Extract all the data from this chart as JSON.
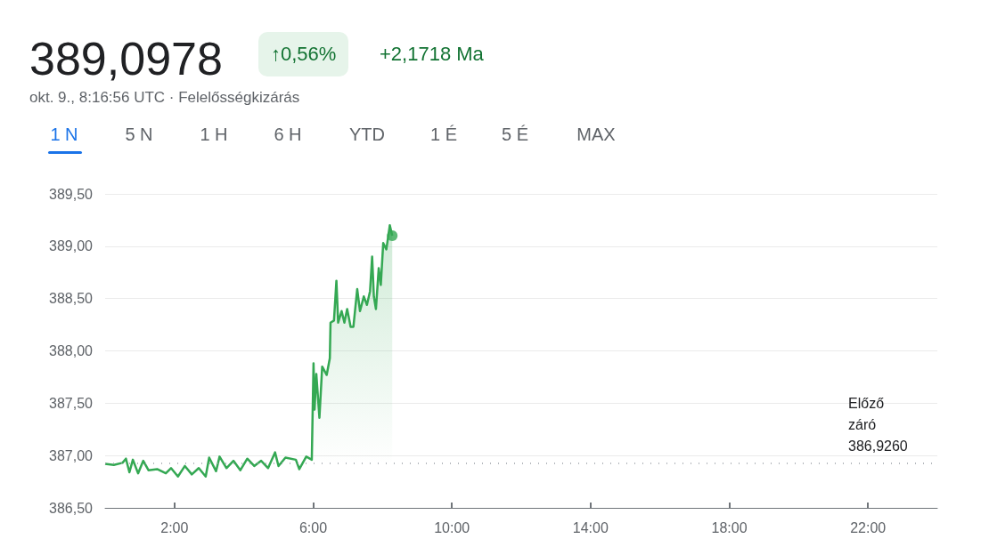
{
  "chart_data": {
    "type": "area",
    "title": "389,0978",
    "annotations": [
      "↑0,56%",
      "+2,1718 Ma",
      "okt. 9., 8:16:56 UTC · Felelősségkizárás",
      "1 N",
      "5 N",
      "1 H",
      "6 H",
      "YTD",
      "1 É",
      "5 É",
      "MAX"
    ],
    "series": [
      {
        "color": "#34a853",
        "x": [
          0,
          0.25,
          0.5,
          0.6,
          0.7,
          0.8,
          0.95,
          1.1,
          1.25,
          1.5,
          1.75,
          1.9,
          2.1,
          2.3,
          2.5,
          2.7,
          2.9,
          3.0,
          3.2,
          3.3,
          3.5,
          3.7,
          3.9,
          4.1,
          4.3,
          4.5,
          4.7,
          4.9,
          5.0,
          5.2,
          5.5,
          5.6,
          5.8,
          5.96,
          6.01,
          6.04,
          6.09,
          6.18,
          6.26,
          6.39,
          6.48,
          6.5,
          6.6,
          6.67,
          6.72,
          6.82,
          6.9,
          6.98,
          7.08,
          7.16,
          7.27,
          7.35,
          7.46,
          7.55,
          7.64,
          7.7,
          7.75,
          7.81,
          7.89,
          7.95,
          8.02,
          8.11,
          8.21,
          8.28
        ],
        "values": [
          386.92,
          386.91,
          386.93,
          386.97,
          386.84,
          386.96,
          386.83,
          386.95,
          386.86,
          386.87,
          386.83,
          386.88,
          386.8,
          386.9,
          386.82,
          386.88,
          386.8,
          386.98,
          386.85,
          386.99,
          386.88,
          386.95,
          386.86,
          386.97,
          386.9,
          386.95,
          386.88,
          387.03,
          386.9,
          386.98,
          386.96,
          386.87,
          386.99,
          386.96,
          387.88,
          387.44,
          387.78,
          387.36,
          387.85,
          387.77,
          387.93,
          388.27,
          388.29,
          388.67,
          388.27,
          388.38,
          388.27,
          388.4,
          388.23,
          388.23,
          388.59,
          388.38,
          388.52,
          388.44,
          388.57,
          388.9,
          388.52,
          388.4,
          388.79,
          388.63,
          389.03,
          388.97,
          389.2,
          389.1
        ]
      },
      {
        "type": "scatter",
        "color": "#34a853",
        "x": [
          8.28
        ],
        "values": [
          389.1
        ]
      }
    ],
    "xlim": [
      0,
      24
    ],
    "xticks": [
      {
        "value": 2,
        "label": "2:00"
      },
      {
        "value": 6,
        "label": "6:00"
      },
      {
        "value": 10,
        "label": "10:00"
      },
      {
        "value": 14,
        "label": "14:00"
      },
      {
        "value": 18,
        "label": "18:00"
      },
      {
        "value": 22,
        "label": "22:00"
      }
    ],
    "ylim": [
      386.5,
      389.5
    ],
    "yticks": [
      {
        "value": 386.5,
        "label": "386,50"
      },
      {
        "value": 387,
        "label": "387,00"
      },
      {
        "value": 387.5,
        "label": "387,50"
      },
      {
        "value": 388,
        "label": "388,00"
      },
      {
        "value": 388.5,
        "label": "388,50"
      },
      {
        "value": 389,
        "label": "389,00"
      },
      {
        "value": 389.5,
        "label": "389,50"
      }
    ],
    "ref_lines": [
      {
        "axis": "y",
        "value": 386.926,
        "label": "Előző záró 386,9260",
        "color": "#9aa0a6",
        "line_style": "dotted"
      }
    ],
    "grid": "y"
  }
}
